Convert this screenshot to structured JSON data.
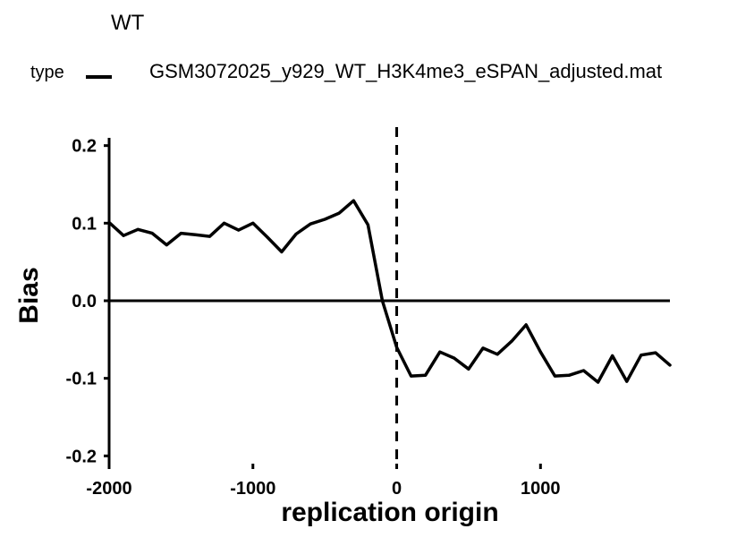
{
  "figure": {
    "facet_title": "WT",
    "legend_title": "type",
    "legend_label": "GSM3072025_y929_WT_H3K4me3_eSPAN_adjusted.mat",
    "line_color": "#000000"
  },
  "chart_data": {
    "type": "line",
    "title": "WT",
    "xlabel": "replication origin",
    "ylabel": "Bias",
    "xlim": [
      -2000,
      1900
    ],
    "ylim": [
      -0.21,
      0.21
    ],
    "x_ticks": [
      -2000,
      -1000,
      0,
      1000
    ],
    "x_tick_labels": [
      "-2000",
      "-1000",
      "0",
      "1000"
    ],
    "y_ticks": [
      -0.2,
      -0.1,
      0.0,
      0.1,
      0.2
    ],
    "y_tick_labels": [
      "-0.2",
      "-0.1",
      "0.0",
      "0.1",
      "0.2"
    ],
    "reference_lines": {
      "vertical_dashed_x": 0,
      "horizontal_solid_y": 0
    },
    "legend_position": "top",
    "series": [
      {
        "name": "GSM3072025_y929_WT_H3K4me3_eSPAN_adjusted.mat",
        "x": [
          -2000,
          -1900,
          -1800,
          -1700,
          -1600,
          -1500,
          -1400,
          -1300,
          -1200,
          -1100,
          -1000,
          -900,
          -800,
          -700,
          -600,
          -500,
          -400,
          -300,
          -200,
          -100,
          0,
          100,
          200,
          300,
          400,
          500,
          600,
          700,
          800,
          900,
          1000,
          1100,
          1200,
          1300,
          1400,
          1500,
          1600,
          1700,
          1800,
          1900
        ],
        "values": [
          0.101,
          0.084,
          0.092,
          0.087,
          0.072,
          0.087,
          0.085,
          0.083,
          0.1,
          0.091,
          0.1,
          0.082,
          0.063,
          0.086,
          0.099,
          0.105,
          0.113,
          0.129,
          0.098,
          0.0,
          -0.06,
          -0.097,
          -0.096,
          -0.066,
          -0.074,
          -0.088,
          -0.061,
          -0.069,
          -0.052,
          -0.031,
          -0.066,
          -0.097,
          -0.096,
          -0.09,
          -0.105,
          -0.071,
          -0.104,
          -0.07,
          -0.067,
          -0.083
        ]
      }
    ]
  }
}
